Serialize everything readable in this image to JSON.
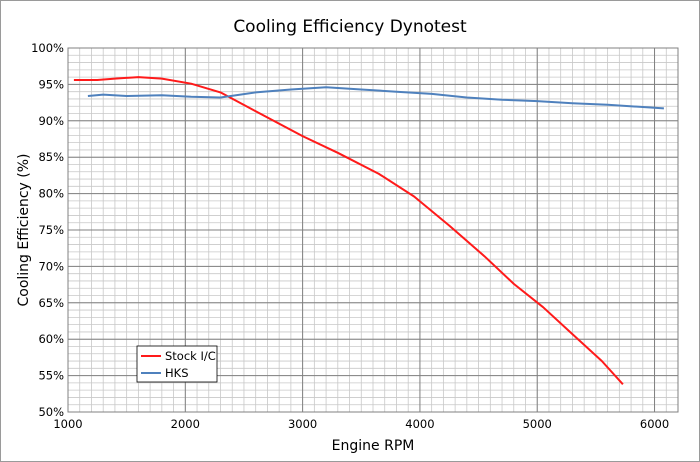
{
  "chart_data": {
    "type": "line",
    "title": "Cooling Efficiency Dynotest",
    "xlabel": "Engine RPM",
    "ylabel": "Cooling Efficiency (%)",
    "xlim": [
      1000,
      6200
    ],
    "ylim": [
      50,
      100
    ],
    "x_ticks": [
      1000,
      2000,
      3000,
      4000,
      5000,
      6000
    ],
    "x_tick_labels": [
      "1000",
      "2000",
      "3000",
      "4000",
      "5000",
      "6000"
    ],
    "y_ticks": [
      50,
      55,
      60,
      65,
      70,
      75,
      80,
      85,
      90,
      95,
      100
    ],
    "y_tick_labels": [
      "50%",
      "55%",
      "60%",
      "65%",
      "70%",
      "75%",
      "80%",
      "85%",
      "90%",
      "95%",
      "100%"
    ],
    "x_minor_step": 100,
    "y_minor_step": 1,
    "grid": true,
    "legend": "bottom-left",
    "series": [
      {
        "name": "Stock I/C",
        "color": "#ff1a1a",
        "x": [
          1050,
          1250,
          1400,
          1600,
          1800,
          2050,
          2300,
          2600,
          3000,
          3300,
          3650,
          3950,
          4250,
          4550,
          4800,
          5050,
          5300,
          5550,
          5730
        ],
        "y": [
          95.6,
          95.6,
          95.8,
          96.0,
          95.8,
          95.1,
          93.9,
          91.3,
          87.9,
          85.6,
          82.7,
          79.6,
          75.6,
          71.4,
          67.6,
          64.4,
          60.7,
          57.0,
          53.8
        ]
      },
      {
        "name": "HKS",
        "color": "#4f81bd",
        "x": [
          1170,
          1300,
          1500,
          1800,
          2050,
          2300,
          2600,
          2900,
          3200,
          3500,
          3800,
          4100,
          4400,
          4700,
          5000,
          5300,
          5600,
          5900,
          6080
        ],
        "y": [
          93.4,
          93.6,
          93.4,
          93.5,
          93.3,
          93.2,
          93.9,
          94.3,
          94.6,
          94.3,
          94.0,
          93.7,
          93.2,
          92.9,
          92.7,
          92.4,
          92.2,
          91.9,
          91.7
        ]
      }
    ]
  }
}
